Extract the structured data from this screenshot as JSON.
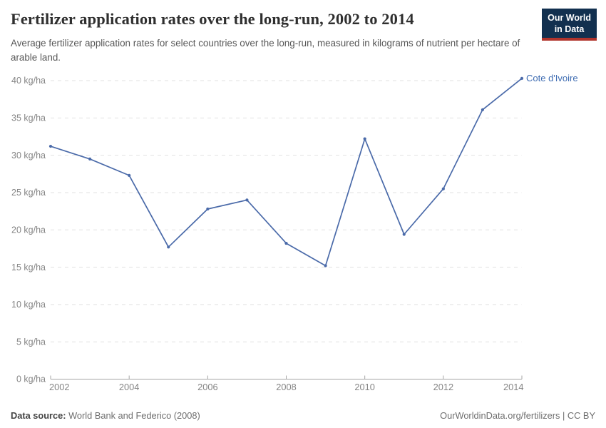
{
  "header": {
    "logo": {
      "line1": "Our World",
      "line2": "in Data"
    }
  },
  "chart_data": {
    "type": "line",
    "title": "Fertilizer application rates over the long-run, 2002 to 2014",
    "subtitle": "Average fertilizer application rates for select countries over the long-run, measured in kilograms of nutrient per hectare of arable land.",
    "x": [
      2002,
      2003,
      2004,
      2005,
      2006,
      2007,
      2008,
      2009,
      2010,
      2011,
      2012,
      2013,
      2014
    ],
    "series": [
      {
        "name": "Cote d'Ivoire",
        "values": [
          31.2,
          29.5,
          27.3,
          17.7,
          22.8,
          24.0,
          18.2,
          15.2,
          32.2,
          19.4,
          25.5,
          36.1,
          40.3
        ]
      }
    ],
    "unit": "kg/ha",
    "ylim": [
      0,
      40
    ],
    "ytick_step": 5,
    "xticks": [
      2002,
      2004,
      2006,
      2008,
      2010,
      2012,
      2014
    ],
    "xlim": [
      2002,
      2014
    ],
    "grid": "horizontal-dashed",
    "legend": "line-end-label"
  },
  "footer": {
    "source_label": "Data source:",
    "source_value": " World Bank and Federico (2008)",
    "credit": "OurWorldinData.org/fertilizers | CC BY"
  },
  "colors": {
    "line": "#4a6aa9",
    "series_label": "#3e6cb2",
    "grid": "#e1e1e1",
    "axis": "#a6a6a6",
    "axis_text": "#858585",
    "logo_bg": "#12304f",
    "logo_red": "#b0342c"
  }
}
